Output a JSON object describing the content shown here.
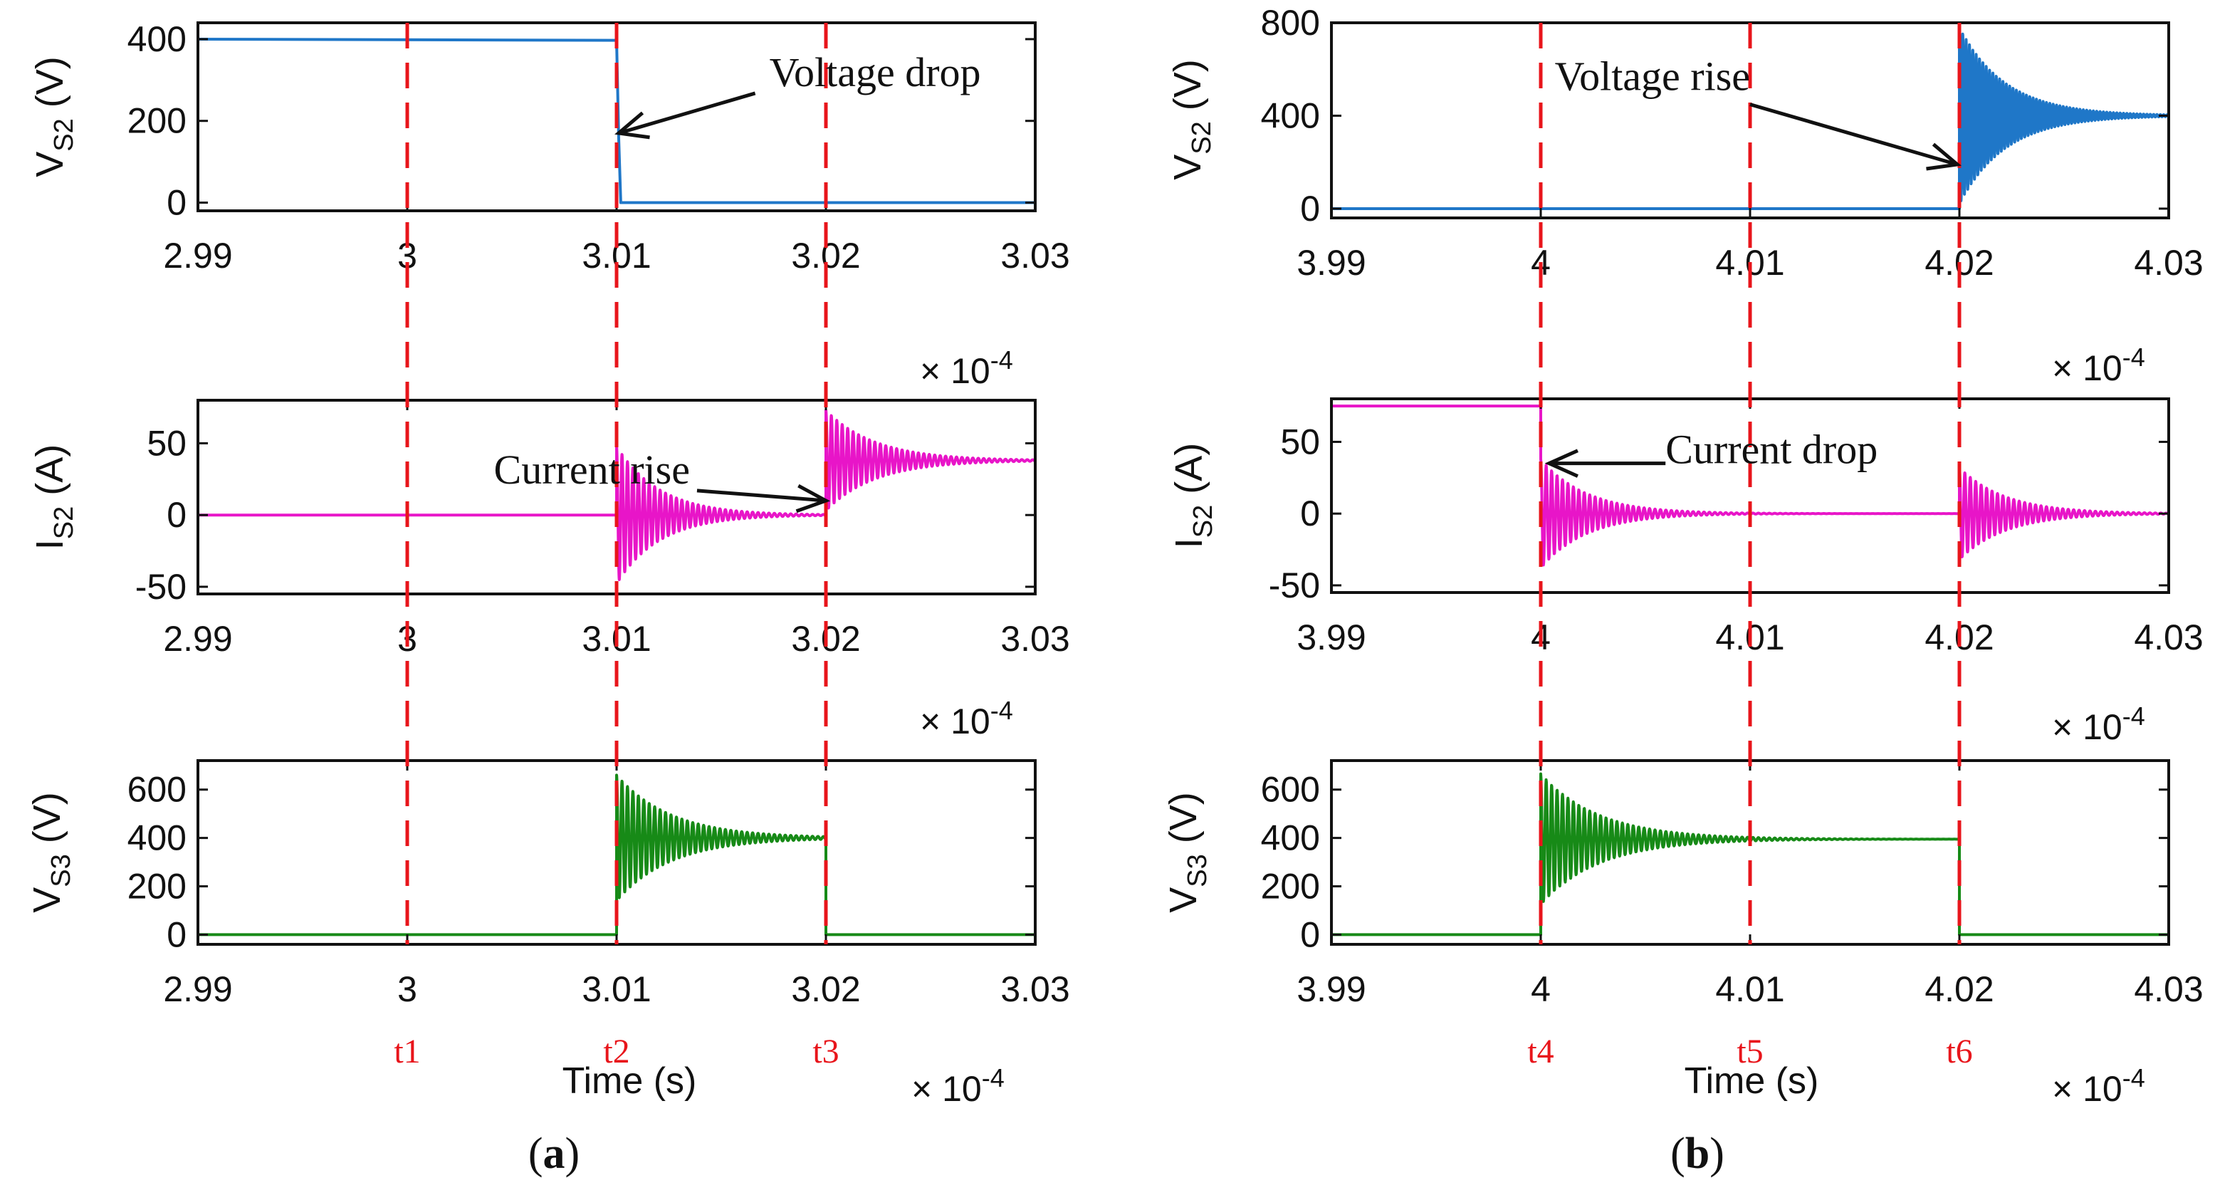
{
  "chart_data": [
    {
      "type": "line",
      "panel": "a",
      "ylabel_main": "V",
      "ylabel_sub": "S2",
      "ylabel_unit": " (V)",
      "ylim": [
        -20,
        440
      ],
      "yticks": [
        0,
        200,
        400
      ],
      "xlim": [
        2.99,
        3.03
      ],
      "xticks": [
        "2.99",
        "3",
        "3.01",
        "3.02",
        "3.03"
      ],
      "x_multiplier": "× 10",
      "x_exponent": "-4",
      "series": [
        {
          "name": "V_S2",
          "color": "#1f77c8",
          "points": [
            [
              2.99,
              400
            ],
            [
              3.01,
              397
            ],
            [
              3.0101,
              160
            ],
            [
              3.0102,
              0
            ],
            [
              3.03,
              0
            ]
          ]
        }
      ],
      "annotation": {
        "text": "Voltage drop",
        "target": [
          3.0101,
          170
        ],
        "text_at": [
          3.0173,
          285
        ]
      }
    },
    {
      "type": "line",
      "panel": "a",
      "ylabel_main": "I",
      "ylabel_sub": "S2",
      "ylabel_unit": " (A)",
      "ylim": [
        -55,
        80
      ],
      "yticks": [
        -50,
        0,
        50
      ],
      "xlim": [
        2.99,
        3.03
      ],
      "xticks": [
        "2.99",
        "3",
        "3.01",
        "3.02",
        "3.03"
      ],
      "x_multiplier": "× 10",
      "x_exponent": "-4",
      "series": [
        {
          "name": "I_S2",
          "color": "#e815c8",
          "oscillations": [
            {
              "t0": 3.01,
              "t1": 3.02,
              "base": 0,
              "start_base": 0,
              "amp": 48,
              "decay": 0.00205,
              "period": 0.00026
            },
            {
              "t0": 3.02,
              "t1": 3.03,
              "base": 38,
              "start_base": 0,
              "amp": 35,
              "decay": 0.00235,
              "period": 0.00026
            }
          ],
          "flat": [
            [
              2.99,
              3.01,
              0
            ]
          ]
        }
      ],
      "annotation": {
        "text": "Current rise",
        "target": [
          3.02,
          10
        ],
        "text_at": [
          3.0084,
          22
        ]
      }
    },
    {
      "type": "line",
      "panel": "a",
      "ylabel_main": "V",
      "ylabel_sub": "S3",
      "ylabel_unit": " (V)",
      "ylim": [
        -40,
        720
      ],
      "yticks": [
        0,
        200,
        400,
        600
      ],
      "xlim": [
        2.99,
        3.03
      ],
      "xticks": [
        "2.99",
        "3",
        "3.01",
        "3.02",
        "3.03"
      ],
      "x_multiplier": "× 10",
      "x_exponent": "-4",
      "xlabel": "Time (s)",
      "series": [
        {
          "name": "V_S3",
          "color": "#178a17",
          "oscillations": [
            {
              "t0": 3.01,
              "t1": 3.02,
              "base": 400,
              "start_base": 0,
              "amp": 260,
              "decay": 0.0026,
              "period": 0.00026
            }
          ],
          "flat": [
            [
              2.99,
              3.01,
              0
            ],
            [
              3.02,
              3.03,
              0
            ]
          ]
        }
      ]
    },
    {
      "type": "line",
      "panel": "b",
      "ylabel_main": "V",
      "ylabel_sub": "S2",
      "ylabel_unit": " (V)",
      "ylim": [
        -40,
        800
      ],
      "yticks": [
        0,
        400,
        800
      ],
      "xlim": [
        3.99,
        4.03
      ],
      "xticks": [
        "3.99",
        "4",
        "4.01",
        "4.02",
        "4.03"
      ],
      "x_multiplier": "× 10",
      "x_exponent": "-4",
      "series": [
        {
          "name": "V_S2",
          "color": "#1f77c8",
          "oscillations": [
            {
              "t0": 4.02,
              "t1": 4.03,
              "base": 400,
              "start_base": 0,
              "amp": 380,
              "decay": 0.0022,
              "period": 0.00016
            }
          ],
          "flat": [
            [
              3.99,
              4.02,
              0
            ]
          ]
        }
      ],
      "annotation": {
        "text": "Voltage rise",
        "target": [
          4.0199,
          190
        ],
        "text_at": [
          4.0049,
          510
        ]
      }
    },
    {
      "type": "line",
      "panel": "b",
      "ylabel_main": "I",
      "ylabel_sub": "S2",
      "ylabel_unit": " (A)",
      "ylim": [
        -55,
        80
      ],
      "yticks": [
        -50,
        0,
        50
      ],
      "xlim": [
        3.99,
        4.03
      ],
      "xticks": [
        "3.99",
        "4",
        "4.01",
        "4.02",
        "4.03"
      ],
      "x_multiplier": "× 10",
      "x_exponent": "-4",
      "series": [
        {
          "name": "I_S2",
          "color": "#e815c8",
          "oscillations": [
            {
              "t0": 4.0,
              "t1": 4.02,
              "base": 0,
              "start_base": 75,
              "amp": 38,
              "decay": 0.0022,
              "period": 0.00026
            },
            {
              "t0": 4.02,
              "t1": 4.03,
              "base": 0,
              "start_base": 0,
              "amp": 32,
              "decay": 0.0022,
              "period": 0.00026
            }
          ],
          "flat": [
            [
              3.99,
              4.0,
              75
            ]
          ]
        }
      ],
      "annotation": {
        "text": "Current drop",
        "target": [
          4.0004,
          35
        ],
        "text_at": [
          4.0063,
          35
        ]
      }
    },
    {
      "type": "line",
      "panel": "b",
      "ylabel_main": "V",
      "ylabel_sub": "S3",
      "ylabel_unit": " (V)",
      "ylim": [
        -40,
        720
      ],
      "yticks": [
        0,
        200,
        400,
        600
      ],
      "xlim": [
        3.99,
        4.03
      ],
      "xticks": [
        "3.99",
        "4",
        "4.01",
        "4.02",
        "4.03"
      ],
      "x_multiplier": "× 10",
      "x_exponent": "-4",
      "xlabel": "Time (s)",
      "series": [
        {
          "name": "V_S3",
          "color": "#178a17",
          "oscillations": [
            {
              "t0": 4.0,
              "t1": 4.02,
              "base": 395,
              "start_base": 0,
              "amp": 270,
              "decay": 0.0028,
              "period": 0.00026
            }
          ],
          "flat": [
            [
              3.99,
              4.0,
              0
            ],
            [
              4.02,
              4.03,
              0
            ]
          ]
        }
      ]
    }
  ],
  "markers": {
    "a": [
      {
        "label": "t1",
        "x": 3.0
      },
      {
        "label": "t2",
        "x": 3.01
      },
      {
        "label": "t3",
        "x": 3.02
      }
    ],
    "b": [
      {
        "label": "t4",
        "x": 4.0
      },
      {
        "label": "t5",
        "x": 4.01
      },
      {
        "label": "t6",
        "x": 4.02
      }
    ]
  },
  "captions": {
    "a": "a",
    "b": "b"
  },
  "colors": {
    "marker": "#e8151b",
    "axes": "#111111"
  }
}
